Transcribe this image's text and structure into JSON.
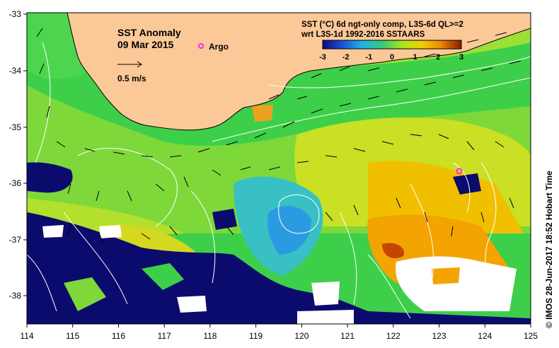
{
  "title": "SST Anomaly",
  "date": "09 Mar 2015",
  "legend_label": "Argo",
  "scale_label": "0.5 m/s",
  "product": "SST (°C) 6d ngt-only comp, L3S-6d QL>=2",
  "reference": "wrt L3S-1d 1992-2016 SSTAARS",
  "credit": "© IMOS 28-Jun-2017 18:52 Hobart Time",
  "colorbar_ticks": [
    "-3",
    "-2",
    "-1",
    "0",
    "1",
    "2",
    "3"
  ],
  "x_ticks": [
    "114",
    "115",
    "116",
    "117",
    "118",
    "119",
    "120",
    "121",
    "122",
    "123",
    "124",
    "125"
  ],
  "y_ticks": [
    "-33",
    "-34",
    "-35",
    "-36",
    "-37",
    "-38"
  ],
  "colors": {
    "land": "#fbc898",
    "nodata": "#ffffff",
    "argo": "#ff22ff"
  },
  "argo_float": {
    "lon": 123.45,
    "lat": -35.8
  }
}
